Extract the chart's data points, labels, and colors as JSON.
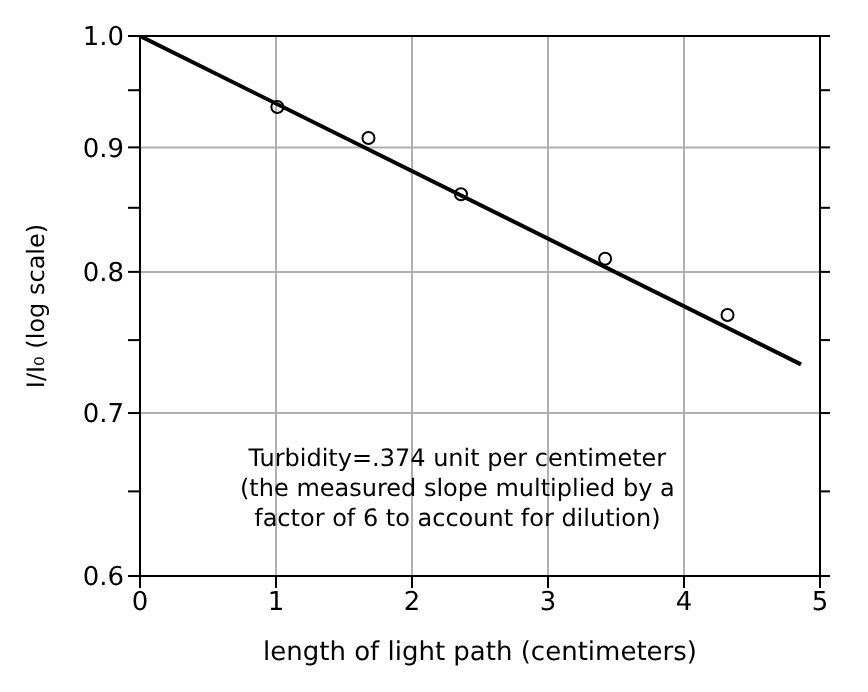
{
  "chart_data": {
    "type": "scatter",
    "xlabel": "length of light path (centimeters)",
    "ylabel": "I/I₀ (log scale)",
    "series": [
      {
        "color": "#000000",
        "marker": "circle",
        "x": [
          1.01,
          1.68,
          2.36,
          3.42,
          4.32
        ],
        "values": [
          0.935,
          0.908,
          0.861,
          0.81,
          0.768
        ]
      },
      {
        "type": "line",
        "color": "#000000",
        "marker": "none",
        "line_style": "solid",
        "x": [
          0,
          4.86
        ],
        "values": [
          1.0,
          0.733
        ]
      }
    ],
    "xlim": [
      0,
      5
    ],
    "xticks": [
      0,
      1,
      2,
      3,
      4,
      5
    ],
    "ylim": [
      0.6,
      1.0
    ],
    "yticks": [
      0.6,
      {
        "value": 0.65,
        "label": null
      },
      0.7,
      {
        "value": 0.75,
        "label": null
      },
      0.8,
      {
        "value": 0.85,
        "label": null
      },
      0.9,
      {
        "value": 0.95,
        "label": null
      },
      {
        "value": 1,
        "label": "1.0"
      }
    ],
    "log": "y",
    "grid": true,
    "annotations": [
      "Turbidity=.374 unit per centimeter\n(the measured slope multiplied by a\nfactor of 6 to account for dilution)"
    ]
  }
}
